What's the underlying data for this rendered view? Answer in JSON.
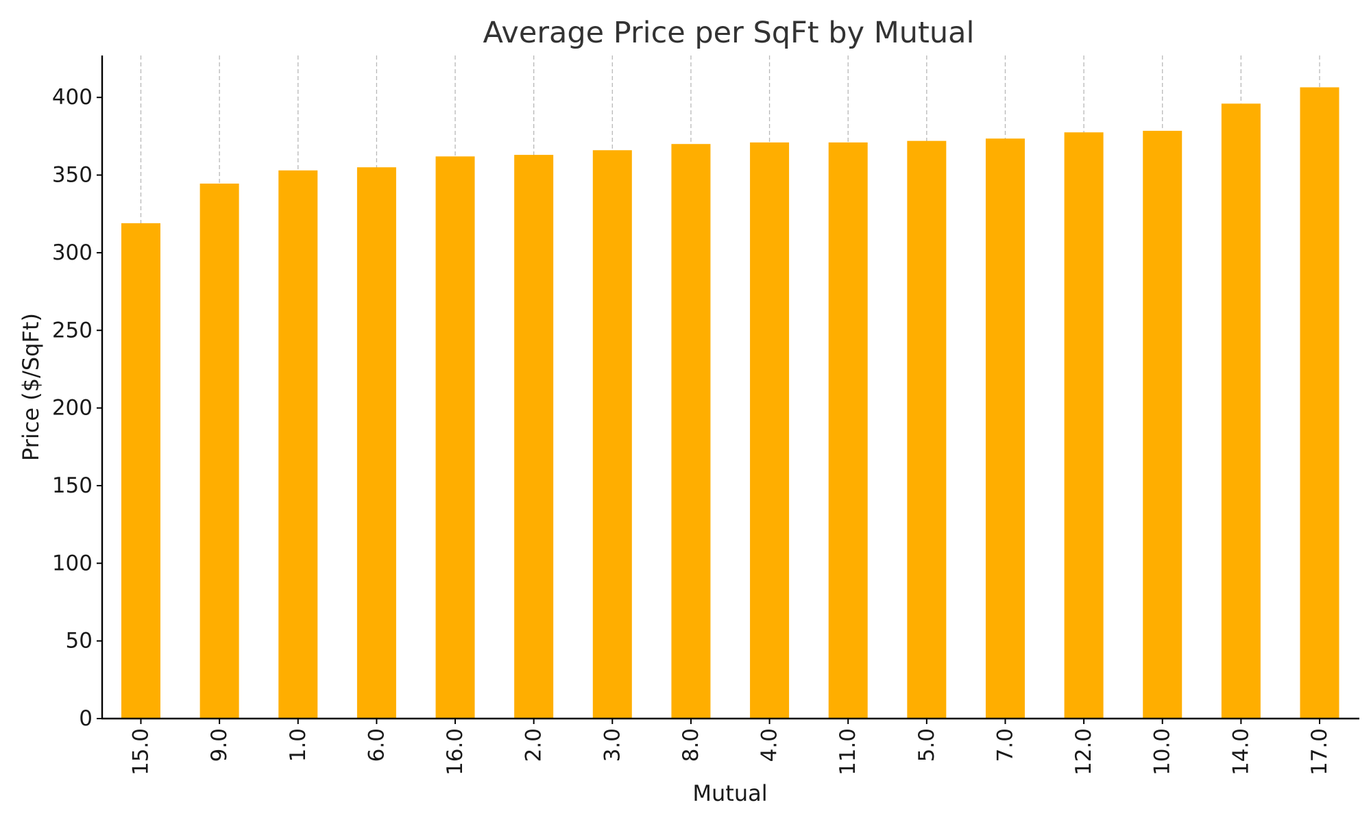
{
  "chart_data": {
    "type": "bar",
    "title": "Average Price per SqFt by Mutual",
    "xlabel": "Mutual",
    "ylabel": "Price ($/SqFt)",
    "categories": [
      "15.0",
      "9.0",
      "1.0",
      "6.0",
      "16.0",
      "2.0",
      "3.0",
      "8.0",
      "4.0",
      "11.0",
      "5.0",
      "7.0",
      "12.0",
      "10.0",
      "14.0",
      "17.0"
    ],
    "values": [
      319,
      344.5,
      353,
      355,
      362,
      363,
      366,
      370,
      371,
      371,
      372,
      373.5,
      377.5,
      378.5,
      396,
      406.5
    ],
    "ylim": [
      0,
      427
    ],
    "yticks": [
      0,
      50,
      100,
      150,
      200,
      250,
      300,
      350,
      400
    ],
    "grid": "vertical dashed",
    "legend": "none",
    "bar_color": "#ffae00"
  }
}
